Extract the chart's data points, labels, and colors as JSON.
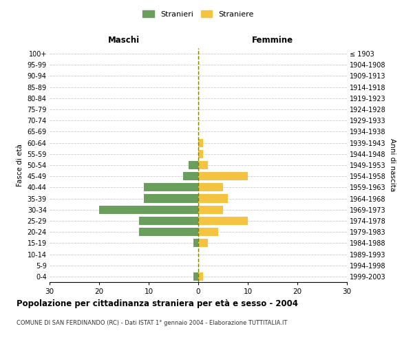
{
  "age_groups": [
    "0-4",
    "5-9",
    "10-14",
    "15-19",
    "20-24",
    "25-29",
    "30-34",
    "35-39",
    "40-44",
    "45-49",
    "50-54",
    "55-59",
    "60-64",
    "65-69",
    "70-74",
    "75-79",
    "80-84",
    "85-89",
    "90-94",
    "95-99",
    "100+"
  ],
  "birth_years": [
    "1999-2003",
    "1994-1998",
    "1989-1993",
    "1984-1988",
    "1979-1983",
    "1974-1978",
    "1969-1973",
    "1964-1968",
    "1959-1963",
    "1954-1958",
    "1949-1953",
    "1944-1948",
    "1939-1943",
    "1934-1938",
    "1929-1933",
    "1924-1928",
    "1919-1923",
    "1914-1918",
    "1909-1913",
    "1904-1908",
    "≤ 1903"
  ],
  "maschi": [
    1,
    0,
    0,
    1,
    12,
    12,
    20,
    11,
    11,
    3,
    2,
    0,
    0,
    0,
    0,
    0,
    0,
    0,
    0,
    0,
    0
  ],
  "femmine": [
    1,
    0,
    0,
    2,
    4,
    10,
    5,
    6,
    5,
    10,
    2,
    1,
    1,
    0,
    0,
    0,
    0,
    0,
    0,
    0,
    0
  ],
  "color_maschi": "#6a9e5c",
  "color_femmine": "#f5c342",
  "title": "Popolazione per cittadinanza straniera per età e sesso - 2004",
  "subtitle": "COMUNE DI SAN FERDINANDO (RC) - Dati ISTAT 1° gennaio 2004 - Elaborazione TUTTITALIA.IT",
  "xlabel_left": "Maschi",
  "xlabel_right": "Femmine",
  "ylabel_left": "Fasce di età",
  "ylabel_right": "Anni di nascita",
  "legend_maschi": "Stranieri",
  "legend_femmine": "Straniere",
  "xlim": 30,
  "background_color": "#ffffff",
  "grid_color": "#cccccc"
}
